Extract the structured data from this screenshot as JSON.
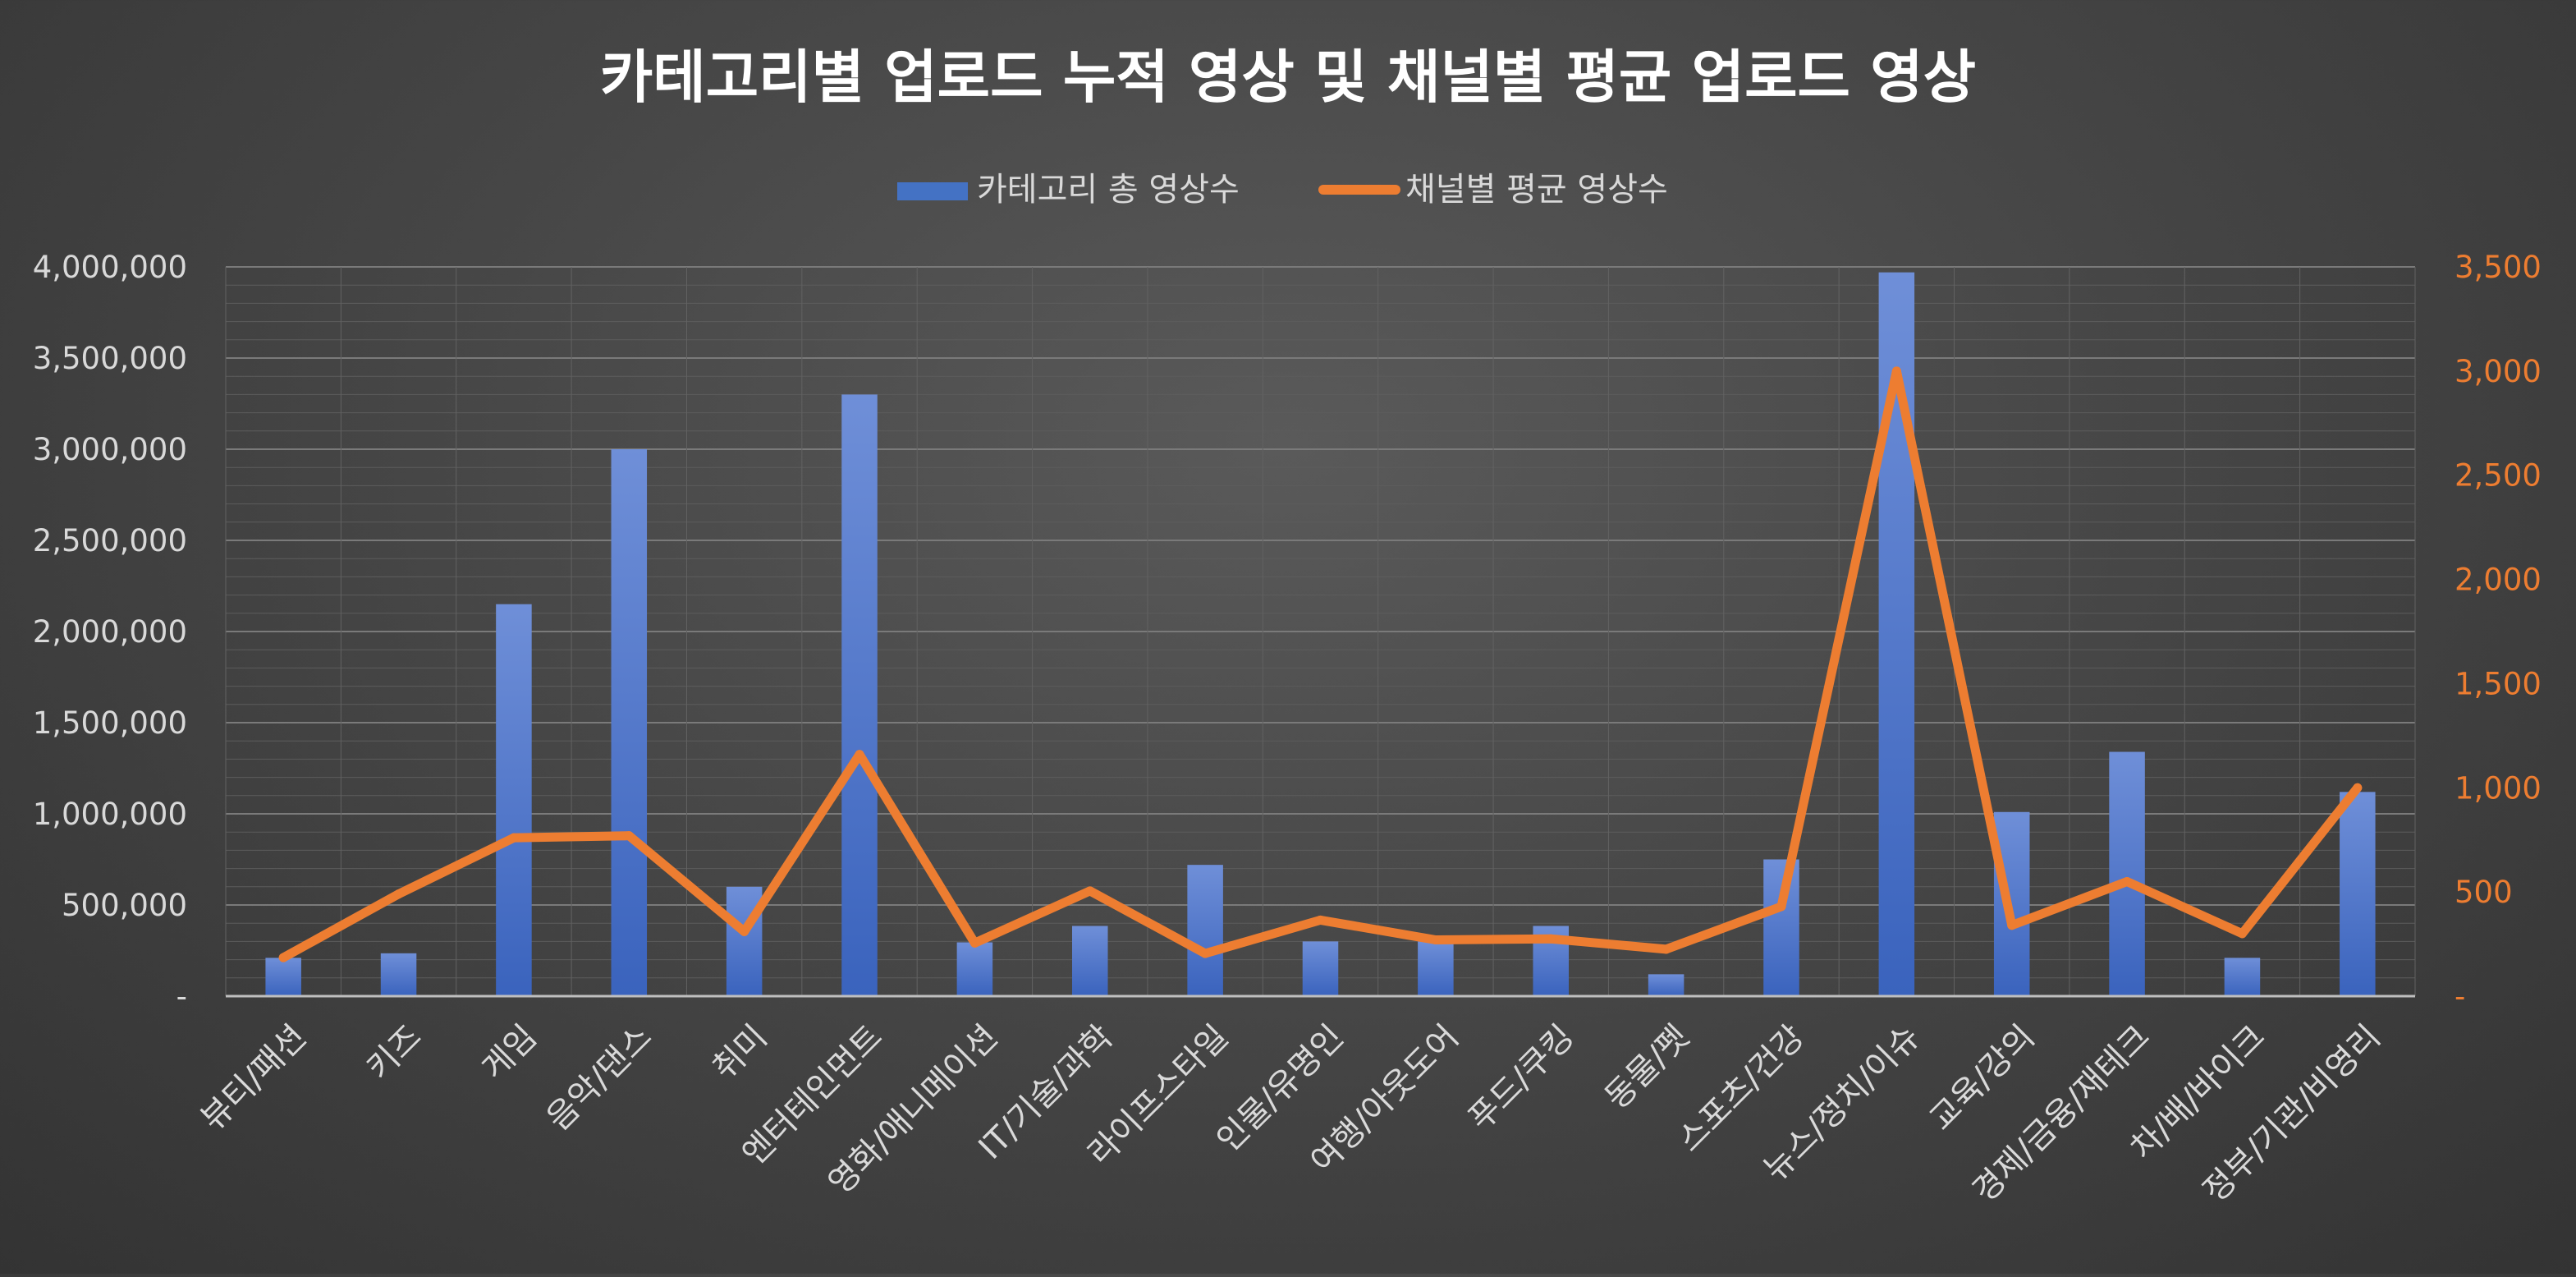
{
  "chart_data": {
    "type": "bar",
    "title": "카테고리별 업로드 누적 영상 및 채널별 평균 업로드 영상",
    "categories": [
      "뷰티/패션",
      "키즈",
      "게임",
      "음악/댄스",
      "취미",
      "엔터테인먼트",
      "영화/애니메이션",
      "IT/기술/과학",
      "라이프스타일",
      "인물/유명인",
      "여행/아웃도어",
      "푸드/쿠킹",
      "동물/펫",
      "스포츠/건강",
      "뉴스/정치/이슈",
      "교육/강의",
      "경제/금융/재테크",
      "차/배/바이크",
      "정부/기관/비영리"
    ],
    "series": [
      {
        "name": "카테고리 총 영상수",
        "type": "bar",
        "axis": "left",
        "color": "#4472c4",
        "values": [
          210000,
          235000,
          2150000,
          3000000,
          600000,
          3300000,
          295000,
          385000,
          720000,
          300000,
          300000,
          385000,
          120000,
          750000,
          3970000,
          1010000,
          1340000,
          210000,
          1120000
        ]
      },
      {
        "name": "채널별 평균 영상수",
        "type": "line",
        "axis": "right",
        "color": "#ed7d31",
        "values": [
          185,
          490,
          760,
          770,
          310,
          1160,
          255,
          505,
          205,
          365,
          270,
          275,
          225,
          430,
          3000,
          340,
          550,
          300,
          1000
        ]
      }
    ],
    "y_left": {
      "min": 0,
      "max": 4000000,
      "step": 500000,
      "tick_labels": [
        "-",
        "500,000",
        "1,000,000",
        "1,500,000",
        "2,000,000",
        "2,500,000",
        "3,000,000",
        "3,500,000",
        "4,000,000"
      ]
    },
    "y_right": {
      "min": 0,
      "max": 3500,
      "step": 500,
      "tick_labels": [
        "-",
        "500",
        "1,000",
        "1,500",
        "2,000",
        "2,500",
        "3,000",
        "3,500"
      ],
      "color": "#ed7d31"
    },
    "xlabel": "",
    "ylabel": "",
    "grid": true,
    "legend_position": "top"
  }
}
